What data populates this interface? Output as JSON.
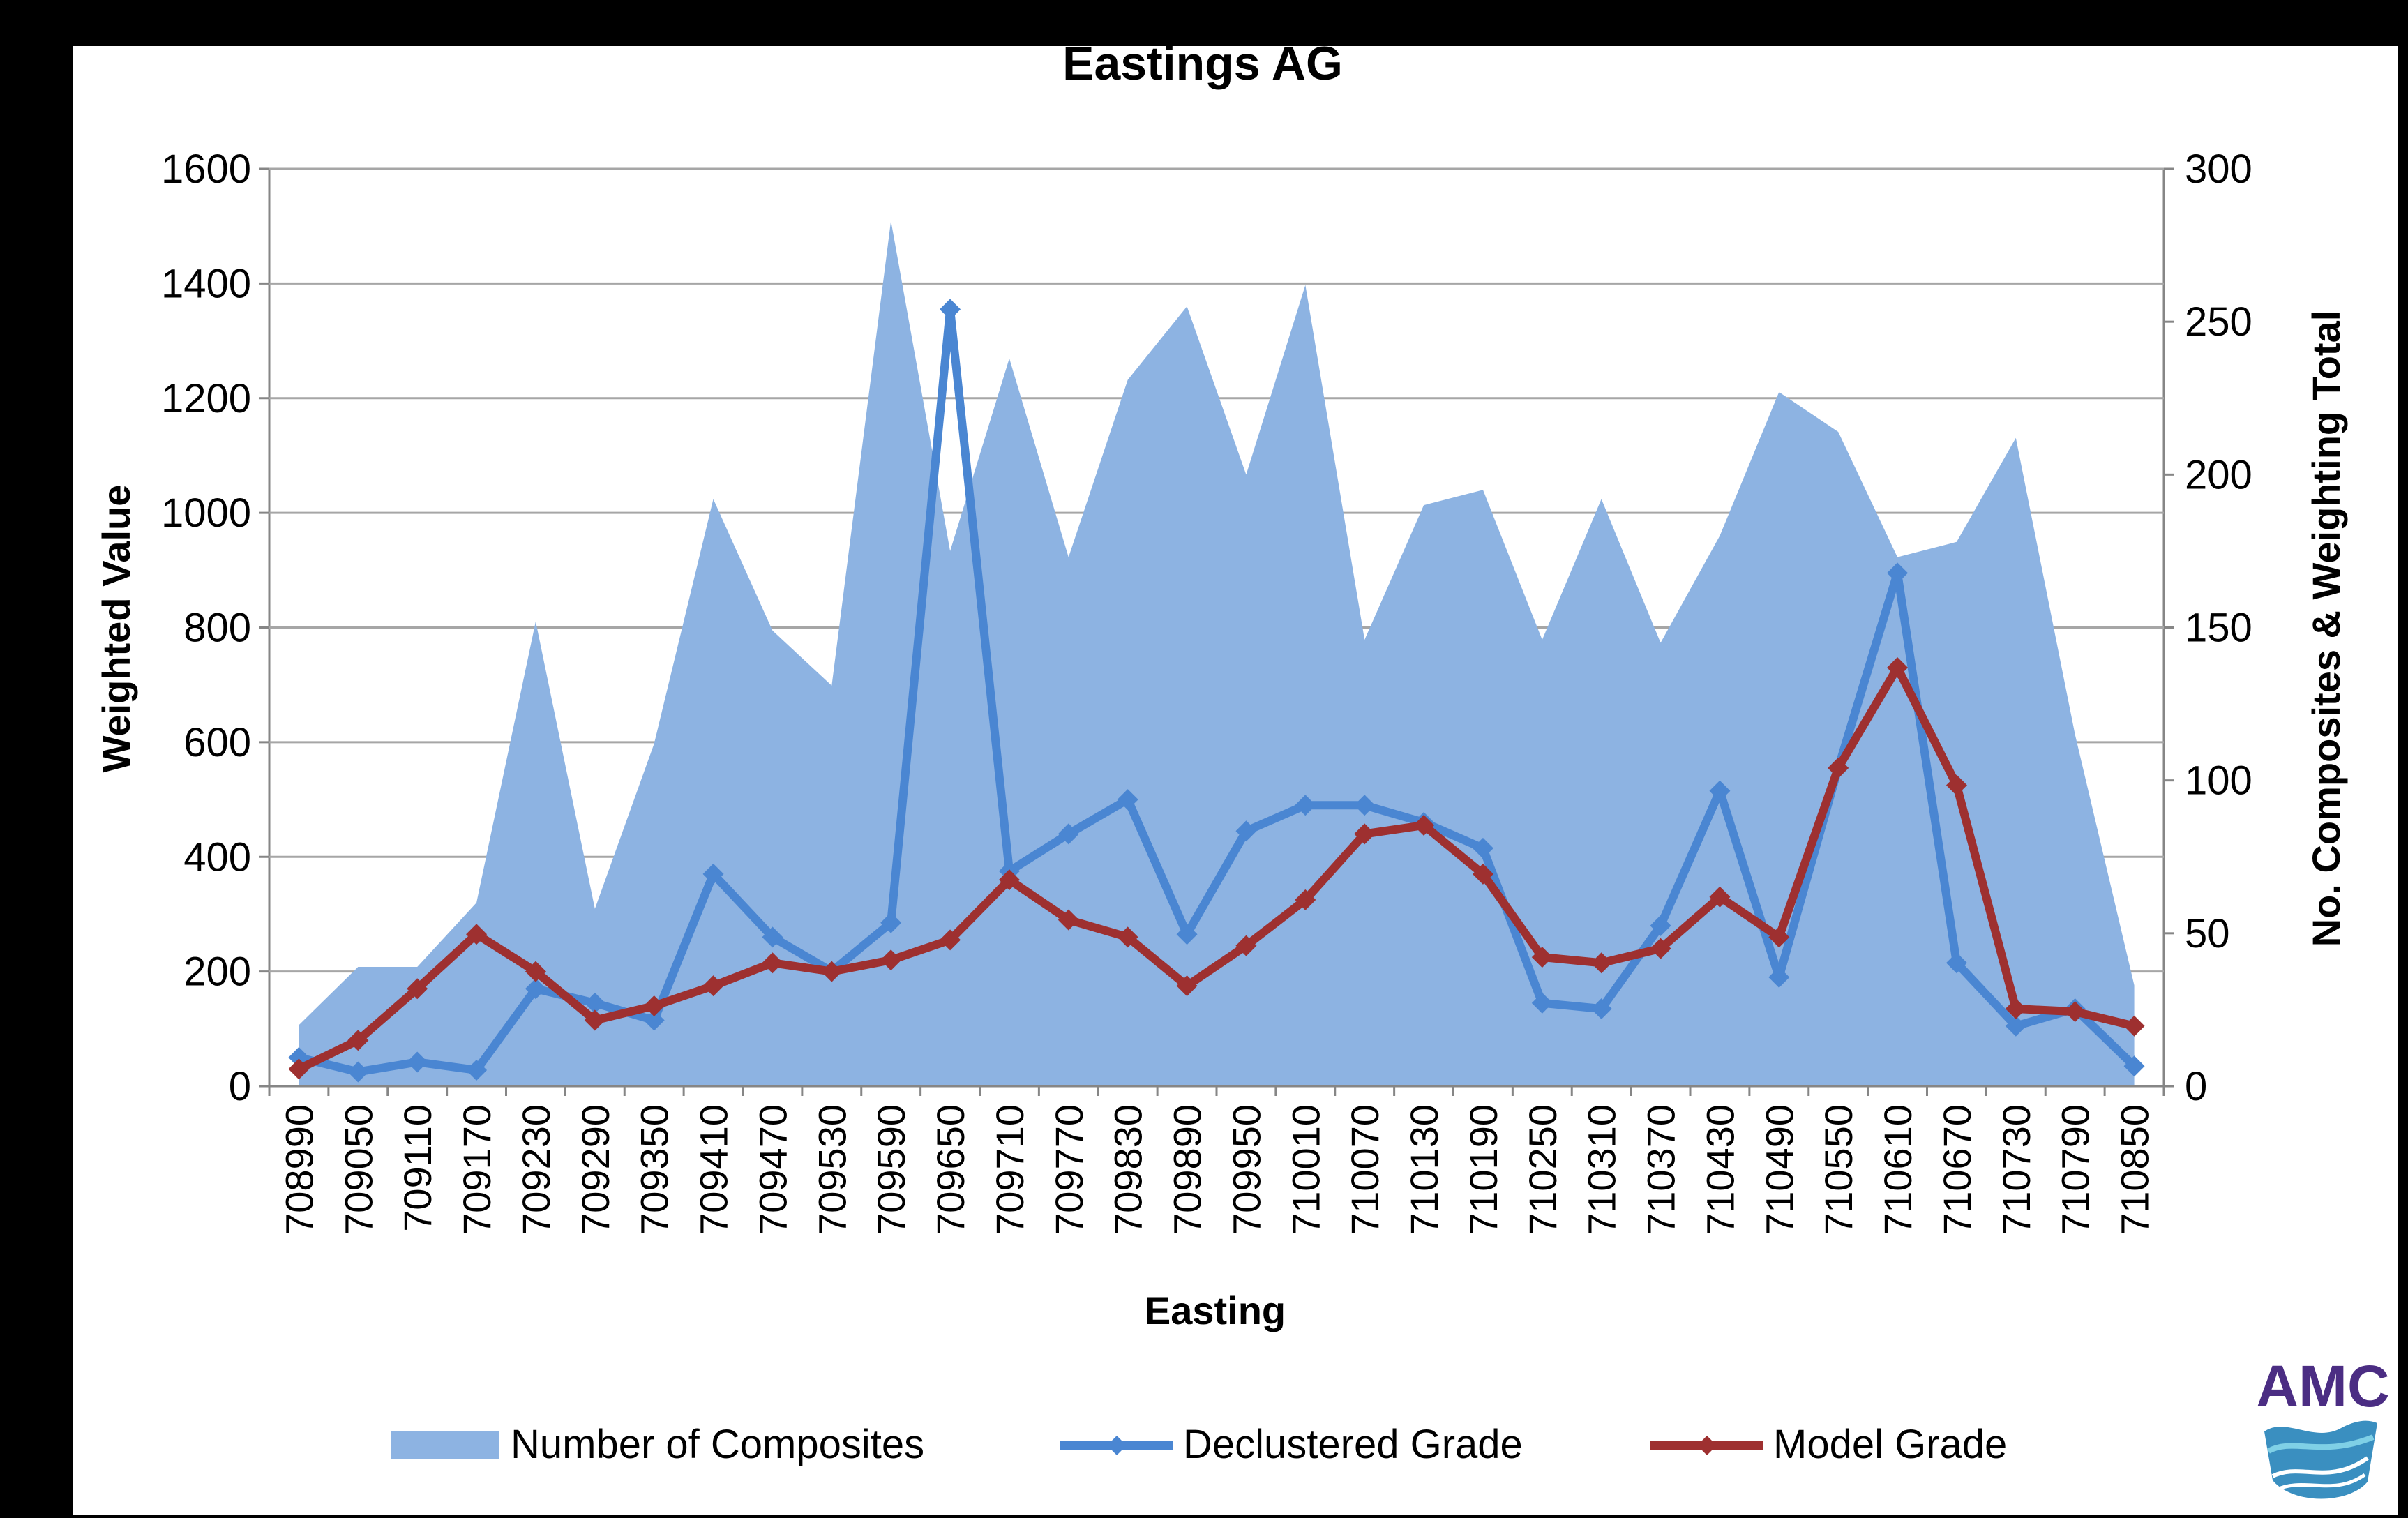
{
  "chart_data": {
    "type": "area+line",
    "title": "Eastings AG",
    "xlabel": "Easting",
    "ylabel_left": "Weighted Value",
    "ylabel_right": "No. Composites & Weighting Total",
    "ylim_left": [
      0,
      1600
    ],
    "ylim_right": [
      0,
      300
    ],
    "yticks_left": [
      "0",
      "200",
      "400",
      "600",
      "800",
      "1000",
      "1200",
      "1400",
      "1600"
    ],
    "yticks_right": [
      "0",
      "50",
      "100",
      "150",
      "200",
      "250",
      "300"
    ],
    "grid": true,
    "legend_position": "bottom",
    "categories": [
      "708990",
      "709050",
      "709110",
      "709170",
      "709230",
      "709290",
      "709350",
      "709410",
      "709470",
      "709530",
      "709590",
      "709650",
      "709710",
      "709770",
      "709830",
      "709890",
      "709950",
      "710010",
      "710070",
      "710130",
      "710190",
      "710250",
      "710310",
      "710370",
      "710430",
      "710490",
      "710550",
      "710610",
      "710670",
      "710730",
      "710790",
      "710850"
    ],
    "series": [
      {
        "name": "Number of Composites",
        "type": "area",
        "axis": "right",
        "color": "#8db3e2",
        "values": [
          20,
          39,
          39,
          60,
          152,
          58,
          112,
          192,
          149,
          131,
          283,
          175,
          238,
          173,
          231,
          255,
          200,
          262,
          146,
          190,
          195,
          146,
          192,
          145,
          180,
          227,
          214,
          173,
          178,
          212,
          115,
          33
        ]
      },
      {
        "name": "Declustered Grade",
        "type": "line",
        "axis": "left",
        "color": "#4a86d2",
        "values": [
          50,
          25,
          42,
          28,
          170,
          145,
          115,
          370,
          260,
          200,
          285,
          1355,
          375,
          440,
          500,
          265,
          445,
          490,
          490,
          460,
          415,
          145,
          135,
          280,
          515,
          190,
          555,
          895,
          215,
          105,
          135,
          35
        ]
      },
      {
        "name": "Model Grade",
        "type": "line",
        "axis": "left",
        "color": "#9e3030",
        "values": [
          30,
          80,
          170,
          265,
          200,
          115,
          140,
          175,
          215,
          200,
          220,
          255,
          360,
          290,
          260,
          175,
          245,
          325,
          440,
          455,
          370,
          225,
          215,
          240,
          330,
          260,
          555,
          730,
          525,
          135,
          130,
          105
        ]
      }
    ]
  },
  "logo": {
    "text": "AMC"
  },
  "colors": {
    "area": "#8db3e2",
    "declustered": "#4a86d2",
    "model": "#9e3030",
    "grid": "#a6a6a6",
    "axis": "#868686",
    "logo_text": "#4b2d83",
    "logo_wave": "#3a8fc0"
  }
}
